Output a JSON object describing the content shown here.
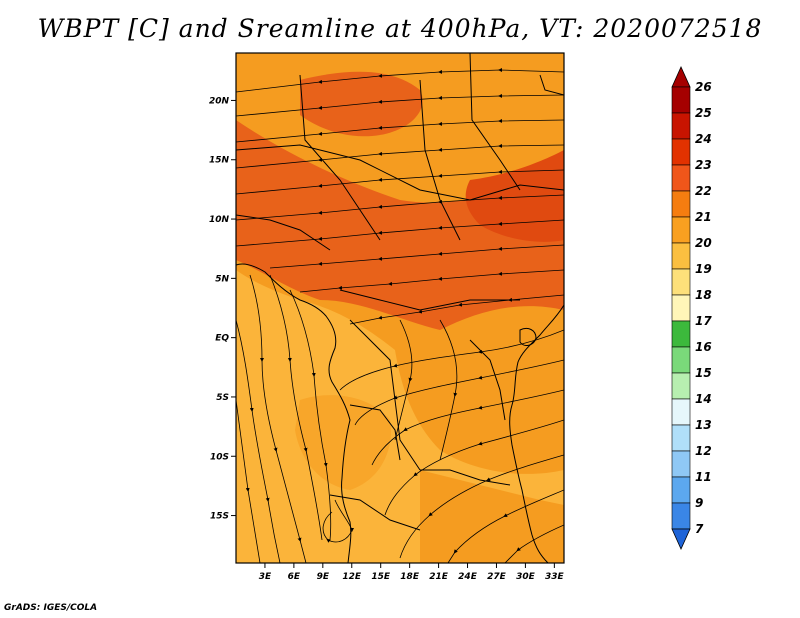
{
  "title": "WBPT [C] and Sreamline at 400hPa, VT: 2020072518",
  "footer": "GrADS: IGES/COLA",
  "map": {
    "field": "Wet-bulb potential temperature",
    "unit": "C",
    "level": "400hPa",
    "valid_time": "2020072518",
    "lon_range": [
      0,
      34
    ],
    "lat_range": [
      -19,
      24
    ],
    "lat_ticks": [
      "20N",
      "15N",
      "10N",
      "5N",
      "EQ",
      "5S",
      "10S",
      "15S"
    ],
    "lat_tick_values": [
      20,
      15,
      10,
      5,
      0,
      -5,
      -10,
      -15
    ],
    "lon_ticks": [
      "3E",
      "6E",
      "9E",
      "12E",
      "15E",
      "18E",
      "21E",
      "24E",
      "27E",
      "30E",
      "33E"
    ],
    "lon_tick_values": [
      3,
      6,
      9,
      12,
      15,
      18,
      21,
      24,
      27,
      30,
      33
    ]
  },
  "colorbar": {
    "labels": [
      "26",
      "25",
      "24",
      "23",
      "22",
      "21",
      "20",
      "19",
      "18",
      "17",
      "16",
      "15",
      "14",
      "13",
      "12",
      "11",
      "9",
      "7"
    ],
    "colors": [
      "#a50000",
      "#c81400",
      "#e23200",
      "#f0561a",
      "#f57d10",
      "#f9a020",
      "#fbbf40",
      "#fde07a",
      "#fff6b8",
      "#3cb93c",
      "#7ad97a",
      "#b7efb0",
      "#e6f7fb",
      "#b0dff9",
      "#8fc8f5",
      "#5ca8ef",
      "#3a86e6",
      "#1e64d8"
    ],
    "top_arrow_color": "#a50000",
    "bottom_arrow_color": "#1e64d8"
  },
  "colors": {
    "frame": "#000000",
    "warm_north": "#e8621a",
    "mid": "#f59c20",
    "south": "#fbb43a"
  }
}
